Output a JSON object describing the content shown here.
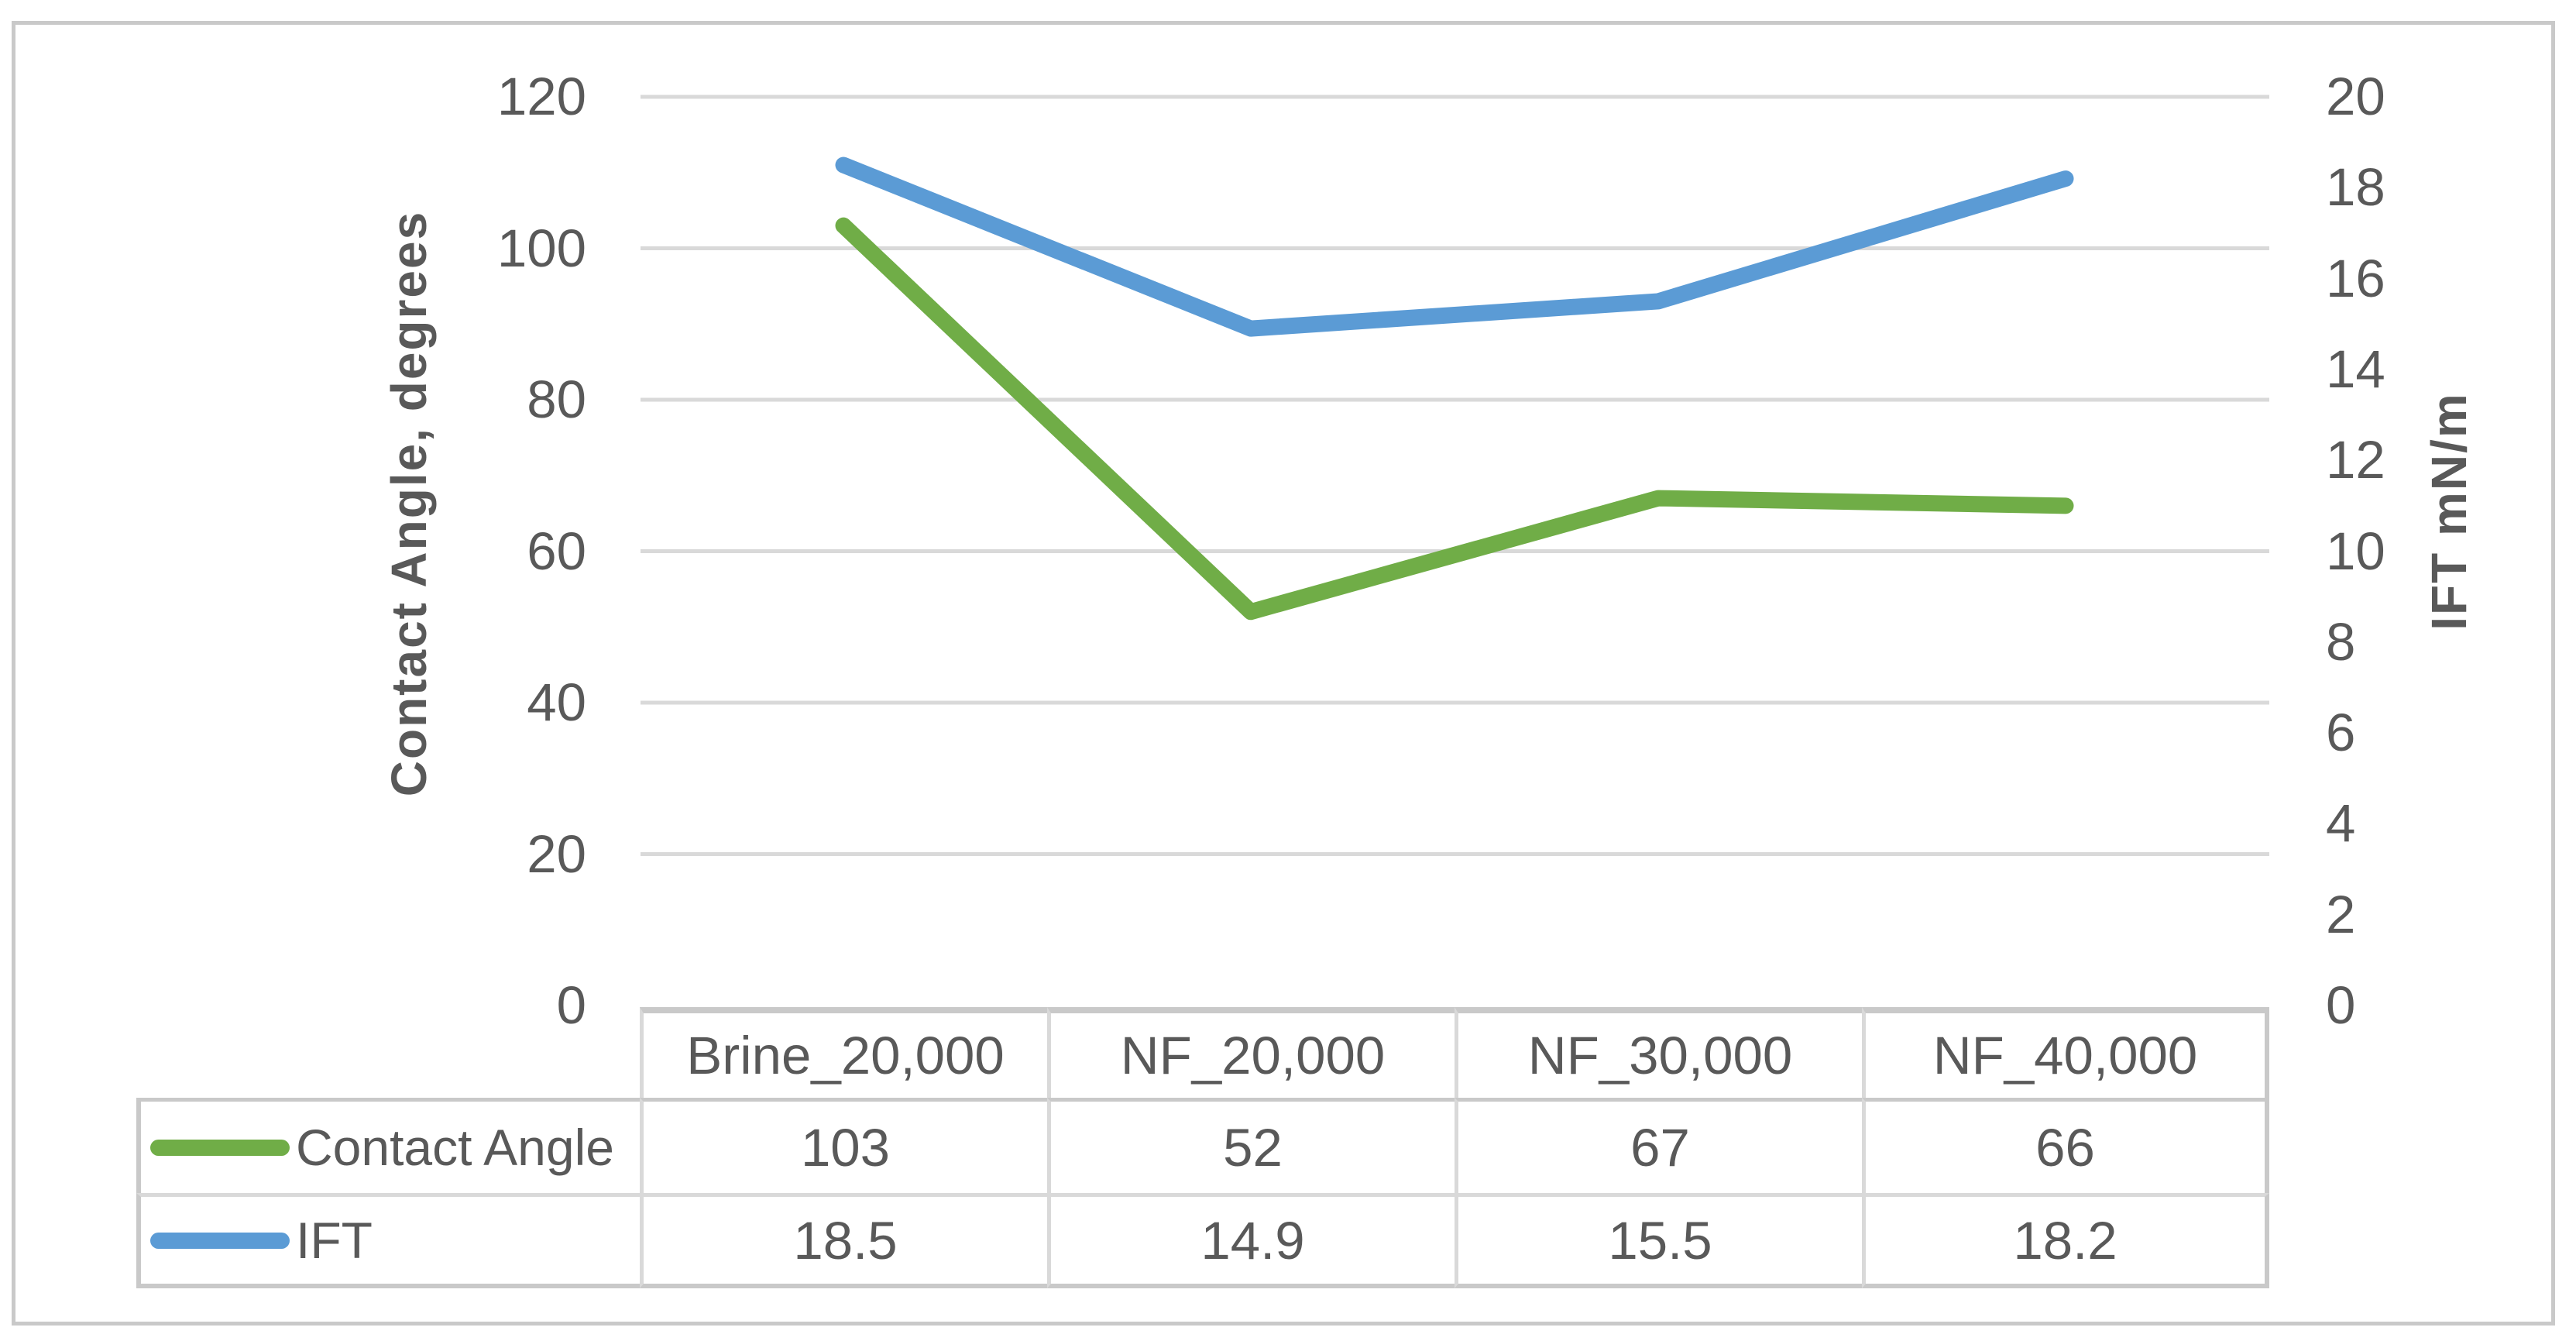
{
  "chart_data": {
    "type": "line",
    "categories": [
      "Brine_20,000",
      "NF_20,000",
      "NF_30,000",
      "NF_40,000"
    ],
    "series": [
      {
        "name": "Contact Angle",
        "axis": "left",
        "color": "#70AD47",
        "values": [
          103,
          52,
          67,
          66
        ]
      },
      {
        "name": "IFT",
        "axis": "right",
        "color": "#5B9BD5",
        "values": [
          18.5,
          14.9,
          15.5,
          18.2
        ]
      }
    ],
    "left_axis": {
      "label": "Contact Angle, degrees",
      "min": 0,
      "max": 120,
      "step": 20,
      "ticks": [
        120,
        100,
        80,
        60,
        40,
        20,
        0
      ]
    },
    "right_axis": {
      "label": "IFT mN/m",
      "min": 0,
      "max": 20,
      "step": 2,
      "ticks": [
        20,
        18,
        16,
        14,
        12,
        10,
        8,
        6,
        4,
        2,
        0
      ]
    },
    "grid": true,
    "legend_position": "table-left",
    "data_table_shown": true,
    "colors": {
      "gridline": "#D9D9D9",
      "tick_text": "#595959",
      "table_border_inner": "#D9D9D9",
      "table_border_outer": "#C9C9C9",
      "frame_border": "#C9C9C9"
    }
  }
}
